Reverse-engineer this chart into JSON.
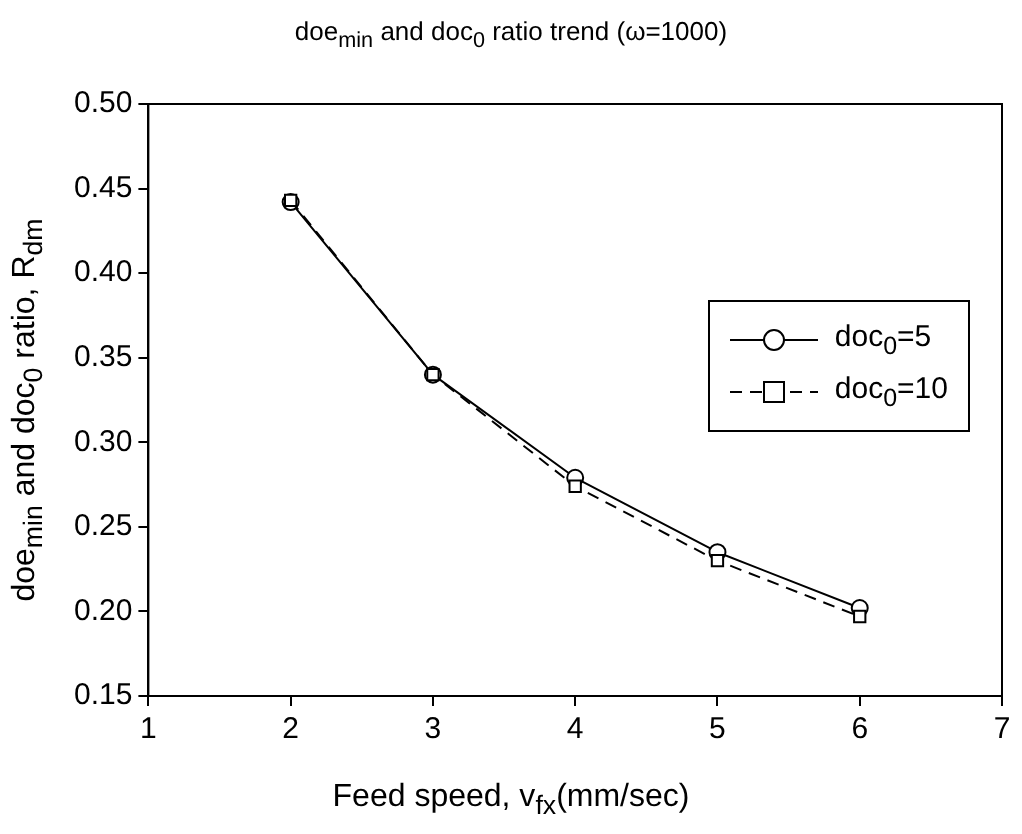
{
  "chart_data": {
    "type": "line",
    "title": "doe$_{min}$ and doc$_{0}$ ratio trend (ω=1000)",
    "xlabel": "Feed speed, v$_{fx}$(mm/sec)",
    "ylabel": "doe$_{min}$ and doc$_{0}$ ratio, R$_{dm}$",
    "x": [
      2,
      3,
      4,
      5,
      6
    ],
    "series": [
      {
        "name": "doc$_{0}$=5",
        "color": "#000000",
        "values": [
          0.442,
          0.34,
          0.279,
          0.235,
          0.202
        ],
        "marker": "circle",
        "line_style": "solid"
      },
      {
        "name": "doc$_{0}$=10",
        "color": "#000000",
        "values": [
          0.443,
          0.34,
          0.274,
          0.23,
          0.197
        ],
        "marker": "square",
        "line_style": "dashed"
      }
    ],
    "xlim": [
      1,
      7
    ],
    "xticks": [
      1,
      2,
      3,
      4,
      5,
      6,
      7
    ],
    "ylim": [
      0.15,
      0.5
    ],
    "yticks": [
      {
        "value": 0.15,
        "label": "0.15"
      },
      {
        "value": 0.2,
        "label": "0.20"
      },
      {
        "value": 0.25,
        "label": "0.25"
      },
      {
        "value": 0.3,
        "label": "0.30"
      },
      {
        "value": 0.35,
        "label": "0.35"
      },
      {
        "value": 0.4,
        "label": "0.40"
      },
      {
        "value": 0.45,
        "label": "0.45"
      },
      {
        "value": 0.5,
        "label": "0.50"
      }
    ],
    "grid": false,
    "legend": "right"
  }
}
